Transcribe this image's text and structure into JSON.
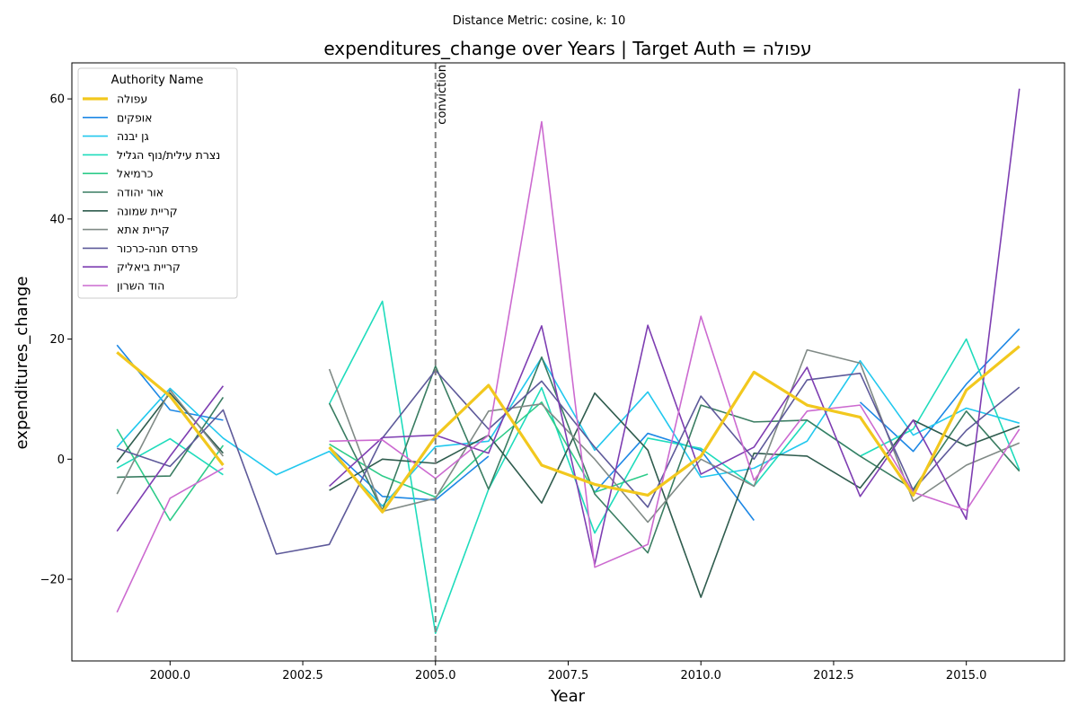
{
  "chart_data": {
    "type": "line",
    "suptitle": "Distance Metric: cosine, k: 10",
    "title": "expenditures_change over Years | Target Auth = עפולה",
    "xlabel": "Year",
    "ylabel": "expenditures_change",
    "xlim": [
      1998.15,
      2016.85
    ],
    "ylim": [
      -33.6,
      66.0
    ],
    "xticks": [
      2000.0,
      2002.5,
      2005.0,
      2007.5,
      2010.0,
      2012.5,
      2015.0
    ],
    "yticks": [
      -20,
      0,
      20,
      40,
      60
    ],
    "xtick_labels": [
      "2000.0",
      "2002.5",
      "2005.0",
      "2007.5",
      "2010.0",
      "2012.5",
      "2015.0"
    ],
    "ytick_labels": [
      "−20",
      "0",
      "20",
      "40",
      "60"
    ],
    "grid": false,
    "legend_title": "Authority Name",
    "legend_placement": "upper-left",
    "vline": {
      "x": 2005,
      "label": "conviction",
      "color": "#808080"
    },
    "series": [
      {
        "name": "עפולה",
        "color": "#f2c81e",
        "width": 3.2,
        "target": true,
        "points": [
          [
            1999,
            17.8
          ],
          [
            2000,
            10.5
          ],
          [
            2001,
            -1.0
          ],
          [
            2003,
            2.0
          ],
          [
            2004,
            -8.8
          ],
          [
            2005,
            3.8
          ],
          [
            2006,
            12.3
          ],
          [
            2007,
            -1.0
          ],
          [
            2008,
            -4.2
          ],
          [
            2009,
            -6.0
          ],
          [
            2010,
            0.5
          ],
          [
            2011,
            14.5
          ],
          [
            2012,
            9.0
          ],
          [
            2013,
            7.0
          ],
          [
            2014,
            -6.0
          ],
          [
            2015,
            11.5
          ],
          [
            2016,
            18.8
          ]
        ]
      },
      {
        "name": "אופקים",
        "color": "#1e88e5",
        "width": 1.6,
        "points": [
          [
            1999,
            19.0
          ],
          [
            2000,
            8.2
          ],
          [
            2001,
            6.5
          ],
          [
            2003,
            2.0
          ],
          [
            2004,
            -6.2
          ],
          [
            2005,
            -6.8
          ],
          [
            2006,
            0.5
          ],
          [
            2008,
            -5.5
          ],
          [
            2009,
            4.3
          ],
          [
            2010,
            1.5
          ],
          [
            2011,
            -10.2
          ],
          [
            2013,
            9.5
          ],
          [
            2014,
            1.3
          ],
          [
            2015,
            12.5
          ],
          [
            2016,
            21.7
          ]
        ]
      },
      {
        "name": "גן יבנה",
        "color": "#22c8ee",
        "width": 1.6,
        "points": [
          [
            1999,
            2.0
          ],
          [
            2000,
            11.8
          ],
          [
            2001,
            3.5
          ],
          [
            2002,
            -2.6
          ],
          [
            2003,
            1.3
          ],
          [
            2004,
            -7.8
          ],
          [
            2005,
            2.1
          ],
          [
            2006,
            3.0
          ],
          [
            2007,
            16.9
          ],
          [
            2008,
            1.5
          ],
          [
            2009,
            11.2
          ],
          [
            2010,
            -3.0
          ],
          [
            2011,
            -1.5
          ],
          [
            2012,
            3.0
          ],
          [
            2013,
            16.4
          ],
          [
            2014,
            4.0
          ],
          [
            2015,
            8.5
          ],
          [
            2016,
            6.0
          ]
        ]
      },
      {
        "name": "נצרת עילית/נוף הגליל",
        "color": "#1fdcbc",
        "width": 1.6,
        "points": [
          [
            1999,
            -1.5
          ],
          [
            2000,
            3.4
          ],
          [
            2001,
            -2.6
          ],
          [
            2003,
            9.2
          ],
          [
            2004,
            26.3
          ],
          [
            2005,
            -29.0
          ],
          [
            2006,
            -5.0
          ],
          [
            2007,
            11.9
          ],
          [
            2008,
            -12.3
          ],
          [
            2009,
            3.5
          ],
          [
            2010,
            1.8
          ],
          [
            2011,
            -4.5
          ],
          [
            2012,
            6.5
          ],
          [
            2013,
            0.5
          ],
          [
            2014,
            5.0
          ],
          [
            2015,
            20.0
          ],
          [
            2016,
            -1.8
          ]
        ]
      },
      {
        "name": "כרמיאל",
        "color": "#2ecc8a",
        "width": 1.6,
        "points": [
          [
            1999,
            5.0
          ],
          [
            2000,
            -10.2
          ],
          [
            2001,
            2.3
          ],
          [
            2003,
            2.5
          ],
          [
            2004,
            -2.8
          ],
          [
            2005,
            -6.3
          ],
          [
            2006,
            2.0
          ],
          [
            2007,
            9.5
          ],
          [
            2008,
            -5.5
          ],
          [
            2009,
            -2.5
          ]
        ]
      },
      {
        "name": "אור יהודה",
        "color": "#3a7d62",
        "width": 1.6,
        "points": [
          [
            1999,
            -3.0
          ],
          [
            2000,
            -2.8
          ],
          [
            2001,
            10.3
          ],
          [
            2003,
            9.3
          ],
          [
            2004,
            -8.5
          ],
          [
            2005,
            15.5
          ],
          [
            2006,
            -5.0
          ],
          [
            2007,
            17.0
          ],
          [
            2008,
            -5.8
          ],
          [
            2009,
            -15.6
          ],
          [
            2010,
            9.0
          ],
          [
            2011,
            6.2
          ],
          [
            2012,
            6.5
          ],
          [
            2013,
            0.5
          ],
          [
            2014,
            -5.0
          ],
          [
            2015,
            8.0
          ],
          [
            2016,
            -2.0
          ]
        ]
      },
      {
        "name": "קריית שמונה",
        "color": "#2f5c4e",
        "width": 1.6,
        "points": [
          [
            1999,
            -0.5
          ],
          [
            2000,
            11.0
          ],
          [
            2001,
            1.0
          ],
          [
            2003,
            -5.2
          ],
          [
            2004,
            0.0
          ],
          [
            2005,
            -0.7
          ],
          [
            2006,
            4.0
          ],
          [
            2007,
            -7.3
          ],
          [
            2008,
            11.0
          ],
          [
            2009,
            1.5
          ],
          [
            2010,
            -23.0
          ],
          [
            2011,
            1.0
          ],
          [
            2012,
            0.5
          ],
          [
            2013,
            -4.8
          ],
          [
            2014,
            6.5
          ],
          [
            2015,
            2.2
          ],
          [
            2016,
            5.5
          ]
        ]
      },
      {
        "name": "קריית אתא",
        "color": "#808a86",
        "width": 1.6,
        "points": [
          [
            1999,
            -5.8
          ],
          [
            2000,
            11.5
          ],
          [
            2001,
            0.5
          ],
          [
            2003,
            15.0
          ],
          [
            2004,
            -8.7
          ],
          [
            2005,
            -6.5
          ],
          [
            2006,
            8.0
          ],
          [
            2007,
            9.2
          ],
          [
            2008,
            0.0
          ],
          [
            2009,
            -10.5
          ],
          [
            2010,
            0.0
          ],
          [
            2011,
            -4.5
          ],
          [
            2012,
            18.2
          ],
          [
            2013,
            16.0
          ],
          [
            2014,
            -7.0
          ],
          [
            2015,
            -1.0
          ],
          [
            2016,
            2.7
          ]
        ]
      },
      {
        "name": "פרדס חנה-כרכור",
        "color": "#5e5a9a",
        "width": 1.6,
        "points": [
          [
            1999,
            1.8
          ],
          [
            2000,
            -1.2
          ],
          [
            2001,
            8.2
          ],
          [
            2002,
            -15.8
          ],
          [
            2003,
            -14.2
          ],
          [
            2004,
            3.5
          ],
          [
            2005,
            14.8
          ],
          [
            2006,
            5.0
          ],
          [
            2007,
            13.0
          ],
          [
            2008,
            2.0
          ],
          [
            2009,
            -8.0
          ],
          [
            2010,
            10.5
          ],
          [
            2011,
            0.0
          ],
          [
            2012,
            13.2
          ],
          [
            2013,
            14.3
          ],
          [
            2014,
            -5.2
          ],
          [
            2015,
            4.8
          ],
          [
            2016,
            12.0
          ]
        ]
      },
      {
        "name": "קריית ביאליק",
        "color": "#7e3eb2",
        "width": 1.6,
        "points": [
          [
            1999,
            -12.0
          ],
          [
            2000,
            0.5
          ],
          [
            2001,
            12.2
          ],
          [
            2003,
            -4.5
          ],
          [
            2004,
            3.6
          ],
          [
            2005,
            4.0
          ],
          [
            2006,
            1.0
          ],
          [
            2007,
            22.2
          ],
          [
            2008,
            -17.5
          ],
          [
            2009,
            22.3
          ],
          [
            2010,
            -2.5
          ],
          [
            2011,
            2.0
          ],
          [
            2012,
            15.3
          ],
          [
            2013,
            -6.2
          ],
          [
            2014,
            6.5
          ],
          [
            2015,
            -10.0
          ],
          [
            2016,
            61.7
          ]
        ]
      },
      {
        "name": "הוד השרון",
        "color": "#cc6ad0",
        "width": 1.6,
        "points": [
          [
            1999,
            -25.5
          ],
          [
            2000,
            -6.5
          ],
          [
            2001,
            -1.5
          ],
          [
            2003,
            3.0
          ],
          [
            2004,
            3.2
          ],
          [
            2005,
            -3.2
          ],
          [
            2006,
            4.0
          ],
          [
            2007,
            56.2
          ],
          [
            2008,
            -18.0
          ],
          [
            2009,
            -14.2
          ],
          [
            2010,
            23.8
          ],
          [
            2011,
            -3.5
          ],
          [
            2012,
            8.0
          ],
          [
            2013,
            9.0
          ],
          [
            2014,
            -5.5
          ],
          [
            2015,
            -8.5
          ],
          [
            2016,
            5.0
          ]
        ]
      }
    ]
  }
}
